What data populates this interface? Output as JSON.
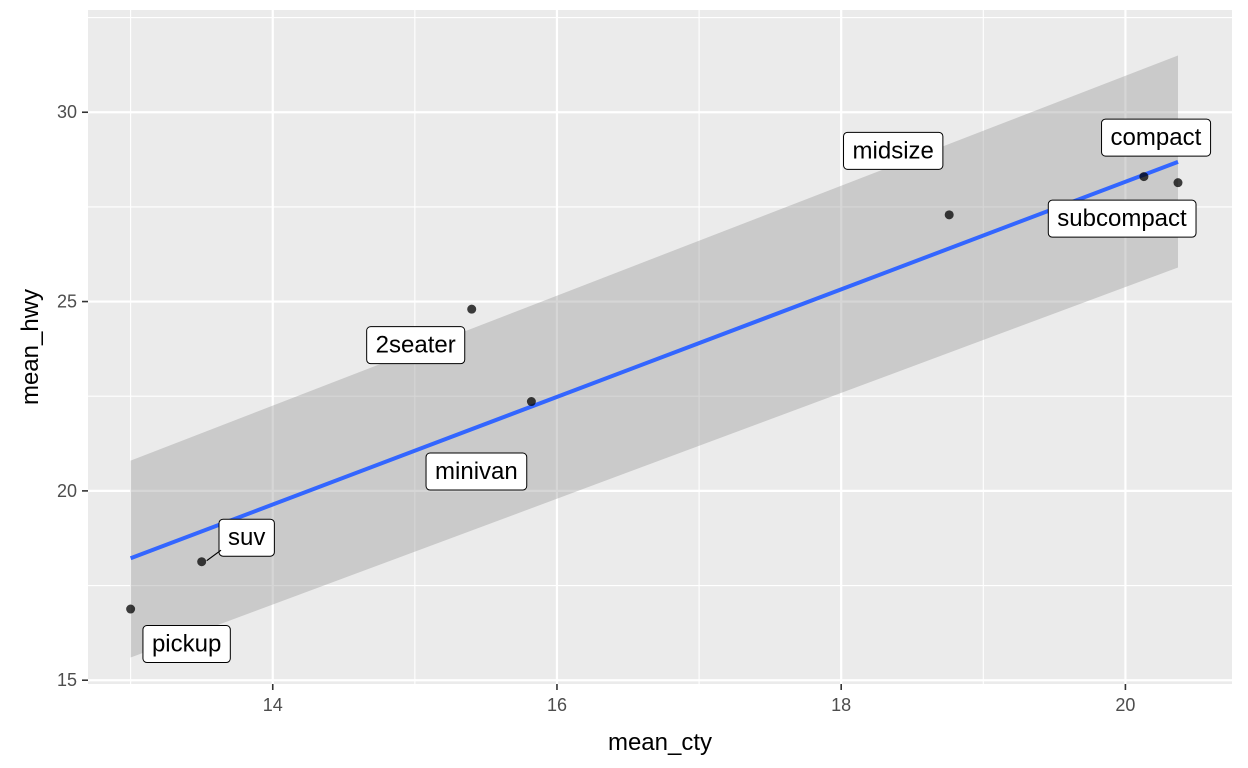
{
  "chart_data": {
    "type": "scatter",
    "xlabel": "mean_cty",
    "ylabel": "mean_hwy",
    "xlim": [
      12.7,
      20.75
    ],
    "ylim": [
      14.9,
      32.7
    ],
    "x_ticks": [
      14,
      16,
      18,
      20
    ],
    "x_tick_labels": [
      "14",
      "16",
      "18",
      "20"
    ],
    "y_ticks": [
      15,
      20,
      25,
      30
    ],
    "y_tick_labels": [
      "15",
      "20",
      "25",
      "30"
    ],
    "grid": true,
    "points": [
      {
        "label": "2seater",
        "x": 15.4,
        "y": 24.8
      },
      {
        "label": "compact",
        "x": 20.13,
        "y": 28.3
      },
      {
        "label": "midsize",
        "x": 18.76,
        "y": 27.29
      },
      {
        "label": "minivan",
        "x": 15.82,
        "y": 22.36
      },
      {
        "label": "pickup",
        "x": 13.0,
        "y": 16.88
      },
      {
        "label": "subcompact",
        "x": 20.37,
        "y": 28.14
      },
      {
        "label": "suv",
        "x": 13.5,
        "y": 18.13
      }
    ],
    "smooth": {
      "method": "lm",
      "x_range": [
        13.0,
        20.37
      ],
      "line_y": [
        18.22,
        28.69
      ],
      "band_low": [
        15.6,
        25.9
      ],
      "band_high": [
        20.8,
        31.5
      ]
    },
    "colors": {
      "panel_background": "#ebebeb",
      "grid_major": "#ffffff",
      "point": "#000000",
      "fit_line": "#3366ff",
      "confidence_band": "#999999",
      "label_box_fill": "#ffffff",
      "label_box_border": "#000000"
    }
  }
}
